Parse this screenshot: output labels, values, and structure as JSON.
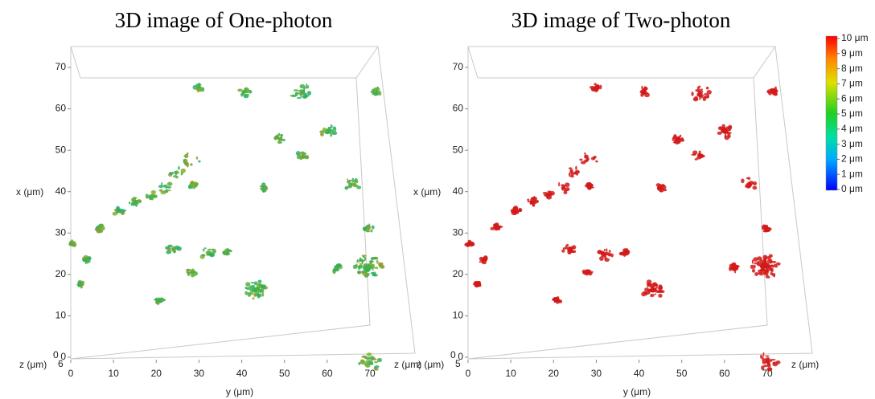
{
  "panels": [
    {
      "title": "3D image of One-photon",
      "x_axis_label": "x (μm)",
      "x_ticks": [
        0,
        10,
        20,
        30,
        40,
        50,
        60,
        70
      ],
      "y_axis_label": "y (μm)",
      "y_ticks": [
        0,
        10,
        20,
        30,
        40,
        50,
        60,
        70
      ],
      "z_axis_label": "z (μm)",
      "z_ticks": [
        0,
        6
      ]
    },
    {
      "title": "3D image of Two-photon",
      "x_axis_label": "x (μm)",
      "x_ticks": [
        0,
        10,
        20,
        30,
        40,
        50,
        60,
        70
      ],
      "y_axis_label": "y (μm)",
      "y_ticks": [
        0,
        10,
        20,
        30,
        40,
        50,
        60,
        70
      ],
      "z_axis_label": "z (μm)",
      "z_ticks": [
        0,
        5
      ]
    }
  ],
  "colorbar": {
    "labels": [
      "10 μm",
      "9 μm",
      "8 μm",
      "7 μm",
      "6 μm",
      "5 μm",
      "4 μm",
      "3 μm",
      "2 μm",
      "1 μm",
      "0 μm"
    ]
  }
}
